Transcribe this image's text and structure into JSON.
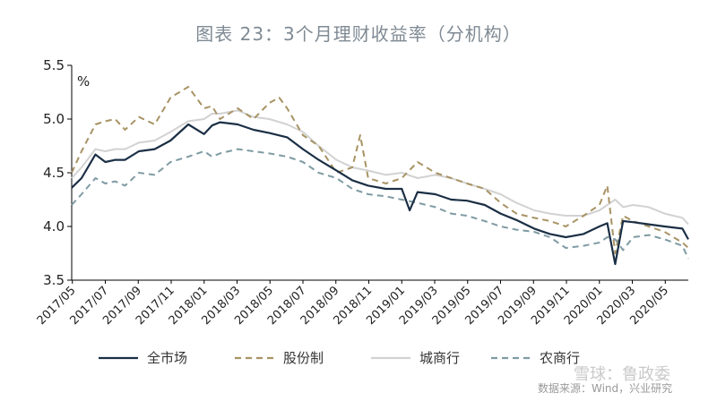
{
  "chart_data": {
    "type": "line",
    "title": "图表 23：3个月理财收益率（分机构）",
    "ylabel": "%",
    "ylim": [
      3.5,
      5.5
    ],
    "y_ticks": [
      "3.5",
      "4.0",
      "4.5",
      "5.0",
      "5.5"
    ],
    "x_ticks": [
      "2017/05",
      "2017/07",
      "2017/09",
      "2017/11",
      "2018/01",
      "2018/03",
      "2018/05",
      "2018/07",
      "2018/09",
      "2018/11",
      "2019/01",
      "2019/03",
      "2019/05",
      "2019/07",
      "2019/09",
      "2019/11",
      "2020/01",
      "2020/03",
      "2020/05"
    ],
    "xlim": [
      2017.33,
      2020.45
    ],
    "legend_position": "bottom",
    "series": [
      {
        "name": "全市场",
        "color": "#1b2f45",
        "style": "solid",
        "x": [
          2017.33,
          2017.38,
          2017.45,
          2017.5,
          2017.55,
          2017.6,
          2017.67,
          2017.75,
          2017.83,
          2017.92,
          2018.0,
          2018.04,
          2018.08,
          2018.17,
          2018.25,
          2018.33,
          2018.42,
          2018.5,
          2018.58,
          2018.67,
          2018.75,
          2018.83,
          2018.92,
          2019.0,
          2019.04,
          2019.08,
          2019.17,
          2019.25,
          2019.33,
          2019.42,
          2019.5,
          2019.58,
          2019.67,
          2019.75,
          2019.83,
          2019.92,
          2020.0,
          2020.04,
          2020.08,
          2020.12,
          2020.17,
          2020.25,
          2020.33,
          2020.42,
          2020.45
        ],
        "y": [
          4.36,
          4.45,
          4.67,
          4.6,
          4.62,
          4.62,
          4.7,
          4.72,
          4.8,
          4.95,
          4.86,
          4.94,
          4.97,
          4.95,
          4.9,
          4.87,
          4.83,
          4.72,
          4.62,
          4.52,
          4.43,
          4.38,
          4.35,
          4.35,
          4.15,
          4.32,
          4.3,
          4.25,
          4.24,
          4.2,
          4.12,
          4.06,
          3.98,
          3.93,
          3.9,
          3.93,
          4.0,
          4.03,
          3.65,
          4.05,
          4.04,
          4.02,
          4.0,
          3.98,
          3.88
        ]
      },
      {
        "name": "股份制",
        "color": "#a89364",
        "style": "dashed",
        "x": [
          2017.33,
          2017.38,
          2017.45,
          2017.5,
          2017.55,
          2017.6,
          2017.67,
          2017.75,
          2017.83,
          2017.92,
          2018.0,
          2018.04,
          2018.08,
          2018.17,
          2018.25,
          2018.33,
          2018.38,
          2018.42,
          2018.5,
          2018.58,
          2018.67,
          2018.75,
          2018.79,
          2018.83,
          2018.92,
          2019.0,
          2019.08,
          2019.17,
          2019.25,
          2019.33,
          2019.42,
          2019.5,
          2019.58,
          2019.67,
          2019.75,
          2019.83,
          2019.92,
          2020.0,
          2020.04,
          2020.08,
          2020.12,
          2020.17,
          2020.25,
          2020.33,
          2020.42,
          2020.45
        ],
        "y": [
          4.5,
          4.7,
          4.95,
          4.98,
          5.0,
          4.9,
          5.02,
          4.95,
          5.2,
          5.3,
          5.1,
          5.12,
          5.0,
          5.1,
          5.0,
          5.15,
          5.2,
          5.1,
          4.85,
          4.75,
          4.5,
          4.55,
          4.85,
          4.45,
          4.4,
          4.45,
          4.6,
          4.5,
          4.45,
          4.4,
          4.35,
          4.22,
          4.12,
          4.08,
          4.05,
          4.0,
          4.1,
          4.2,
          4.38,
          3.75,
          4.1,
          4.05,
          4.0,
          3.95,
          3.85,
          3.8
        ]
      },
      {
        "name": "城商行",
        "color": "#d2d2d2",
        "style": "solid",
        "x": [
          2017.33,
          2017.38,
          2017.45,
          2017.5,
          2017.55,
          2017.6,
          2017.67,
          2017.75,
          2017.83,
          2017.92,
          2018.0,
          2018.04,
          2018.08,
          2018.17,
          2018.25,
          2018.33,
          2018.42,
          2018.5,
          2018.58,
          2018.67,
          2018.75,
          2018.83,
          2018.92,
          2019.0,
          2019.08,
          2019.17,
          2019.25,
          2019.33,
          2019.42,
          2019.5,
          2019.58,
          2019.67,
          2019.75,
          2019.83,
          2019.92,
          2020.0,
          2020.04,
          2020.08,
          2020.12,
          2020.17,
          2020.25,
          2020.33,
          2020.42,
          2020.45
        ],
        "y": [
          4.45,
          4.55,
          4.72,
          4.7,
          4.72,
          4.72,
          4.78,
          4.8,
          4.88,
          4.98,
          5.0,
          5.05,
          5.05,
          5.08,
          5.02,
          5.0,
          4.95,
          4.88,
          4.75,
          4.62,
          4.55,
          4.52,
          4.48,
          4.5,
          4.45,
          4.48,
          4.45,
          4.4,
          4.35,
          4.3,
          4.22,
          4.15,
          4.12,
          4.1,
          4.1,
          4.15,
          4.2,
          4.25,
          4.18,
          4.2,
          4.18,
          4.12,
          4.08,
          4.02
        ]
      },
      {
        "name": "农商行",
        "color": "#7f9ba3",
        "style": "dashed",
        "x": [
          2017.33,
          2017.38,
          2017.45,
          2017.5,
          2017.55,
          2017.6,
          2017.67,
          2017.75,
          2017.83,
          2017.92,
          2018.0,
          2018.04,
          2018.08,
          2018.17,
          2018.25,
          2018.33,
          2018.42,
          2018.5,
          2018.58,
          2018.67,
          2018.75,
          2018.83,
          2018.92,
          2019.0,
          2019.08,
          2019.17,
          2019.25,
          2019.33,
          2019.42,
          2019.5,
          2019.58,
          2019.67,
          2019.75,
          2019.83,
          2019.92,
          2020.0,
          2020.04,
          2020.08,
          2020.12,
          2020.17,
          2020.25,
          2020.33,
          2020.42,
          2020.45
        ],
        "y": [
          4.2,
          4.3,
          4.45,
          4.4,
          4.42,
          4.38,
          4.5,
          4.48,
          4.6,
          4.65,
          4.7,
          4.65,
          4.68,
          4.72,
          4.7,
          4.68,
          4.65,
          4.6,
          4.5,
          4.45,
          4.35,
          4.3,
          4.28,
          4.25,
          4.22,
          4.18,
          4.12,
          4.1,
          4.05,
          4.0,
          3.97,
          3.95,
          3.9,
          3.8,
          3.82,
          3.85,
          3.9,
          3.88,
          3.78,
          3.9,
          3.92,
          3.88,
          3.82,
          3.7
        ]
      }
    ],
    "source": "数据来源：Wind，兴业研究",
    "watermark": "雪球：鲁政委"
  }
}
